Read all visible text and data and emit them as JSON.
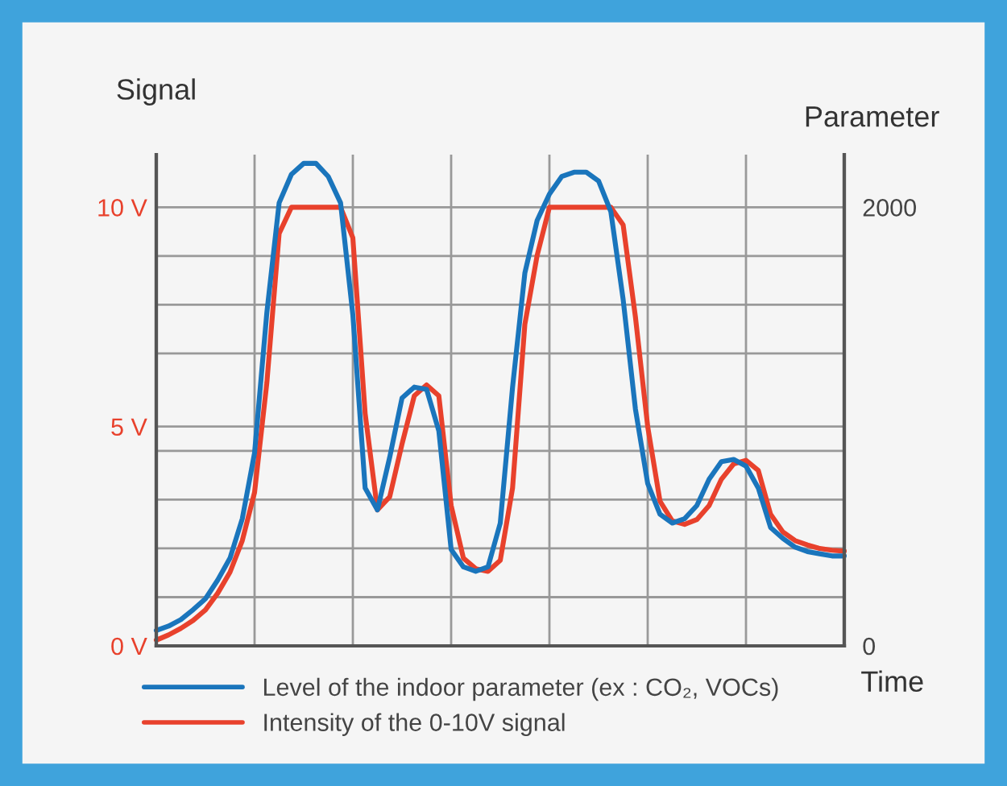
{
  "chart_data": {
    "type": "line",
    "xlabel": "Time",
    "ylabel": "Signal",
    "y2label": "Parameter",
    "categories": [
      null,
      null,
      null,
      null,
      null,
      null,
      null,
      null,
      null,
      null,
      null,
      null,
      null,
      null,
      null,
      null,
      null,
      null,
      null,
      null,
      null,
      null,
      null,
      null,
      null,
      null,
      null,
      null,
      null,
      null,
      null,
      null,
      null,
      null,
      null,
      null,
      null,
      null,
      null,
      null,
      null,
      null,
      null,
      null,
      null,
      null,
      null,
      null,
      null,
      null,
      null,
      null,
      null,
      null,
      null,
      null,
      null
    ],
    "ylim": [
      0,
      11.2
    ],
    "yticks": [
      {
        "value": 0,
        "label": "0 V"
      },
      {
        "value": 1.111,
        "label": null
      },
      {
        "value": 2.222,
        "label": null
      },
      {
        "value": 3.333,
        "label": null
      },
      {
        "value": 4.444,
        "label": null
      },
      {
        "value": 5,
        "label": "5 V"
      },
      {
        "value": 6.667,
        "label": null
      },
      {
        "value": 7.778,
        "label": null
      },
      {
        "value": 8.889,
        "label": null
      },
      {
        "value": 10,
        "label": "10 V"
      }
    ],
    "y2lim": [
      0,
      2240
    ],
    "y2ticks": [
      0,
      2000
    ],
    "grid": true,
    "legend": "bottom",
    "marker": "none",
    "line_style": "solid",
    "series": [
      {
        "name": "Level of the indoor parameter (ex : CO₂, VOCs)",
        "color": "#1a75bc",
        "axis": "y2",
        "values": [
          70,
          90,
          120,
          165,
          215,
          300,
          400,
          580,
          880,
          1520,
          2020,
          2150,
          2200,
          2200,
          2140,
          2020,
          1510,
          720,
          620,
          860,
          1130,
          1180,
          1170,
          980,
          440,
          360,
          340,
          360,
          560,
          1180,
          1700,
          1940,
          2060,
          2140,
          2160,
          2160,
          2120,
          1980,
          1580,
          1080,
          740,
          600,
          560,
          580,
          640,
          760,
          840,
          850,
          820,
          720,
          540,
          490,
          450,
          430,
          420,
          410,
          410
        ]
      },
      {
        "name": "Intensity of the 0-10V signal",
        "color": "#e8412c",
        "values": [
          0.13,
          0.25,
          0.4,
          0.58,
          0.82,
          1.2,
          1.68,
          2.4,
          3.5,
          6.0,
          9.4,
          10,
          10,
          10,
          10,
          10,
          9.3,
          5.3,
          3.1,
          3.4,
          4.6,
          5.7,
          5.95,
          5.7,
          3.2,
          2.0,
          1.76,
          1.7,
          1.95,
          3.6,
          7.33,
          8.9,
          10,
          10,
          10,
          10,
          10,
          10,
          9.6,
          7.5,
          5.0,
          3.3,
          2.85,
          2.77,
          2.88,
          3.2,
          3.8,
          4.15,
          4.23,
          4.0,
          3.0,
          2.6,
          2.4,
          2.3,
          2.22,
          2.18,
          2.16
        ]
      }
    ]
  }
}
